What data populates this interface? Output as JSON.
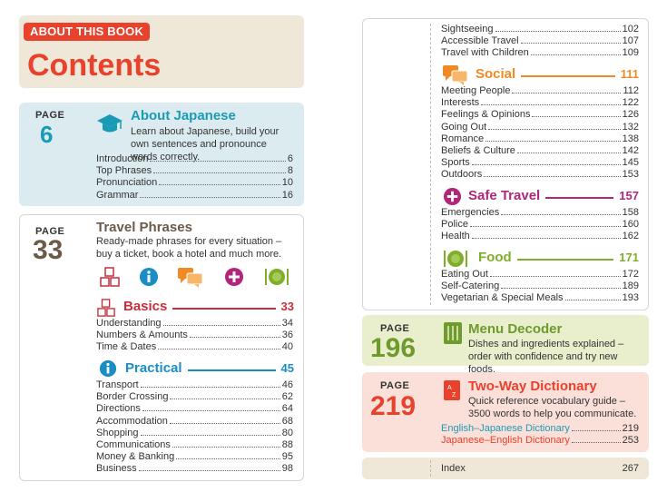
{
  "header": {
    "tag": "ABOUT THIS BOOK",
    "title": "Contents"
  },
  "page_word": "PAGE",
  "about": {
    "page": "6",
    "title": "About Japanese",
    "desc": "Learn about Japanese, build your own sentences and pronounce words correctly.",
    "items": [
      {
        "t": "Introduction",
        "p": "6"
      },
      {
        "t": "Top Phrases",
        "p": "8"
      },
      {
        "t": "Pronunciation",
        "p": "10"
      },
      {
        "t": "Grammar",
        "p": "16"
      }
    ]
  },
  "travel": {
    "page": "33",
    "title": "Travel Phrases",
    "desc": "Ready-made phrases for every situation – buy a ticket, book a hotel and much more.",
    "basics": {
      "label": "Basics",
      "page": "33",
      "items": [
        {
          "t": "Understanding",
          "p": "34"
        },
        {
          "t": "Numbers & Amounts",
          "p": "36"
        },
        {
          "t": "Time & Dates",
          "p": "40"
        }
      ]
    },
    "practical": {
      "label": "Practical",
      "page": "45",
      "items": [
        {
          "t": "Transport",
          "p": "46"
        },
        {
          "t": "Border Crossing",
          "p": "62"
        },
        {
          "t": "Directions",
          "p": "64"
        },
        {
          "t": "Accommodation",
          "p": "68"
        },
        {
          "t": "Shopping",
          "p": "80"
        },
        {
          "t": "Communications",
          "p": "88"
        },
        {
          "t": "Money & Banking",
          "p": "95"
        },
        {
          "t": "Business",
          "p": "98"
        }
      ]
    }
  },
  "right_top": [
    {
      "t": "Sightseeing",
      "p": "102"
    },
    {
      "t": "Accessible Travel",
      "p": "107"
    },
    {
      "t": "Travel with Children",
      "p": "109"
    }
  ],
  "social": {
    "label": "Social",
    "page": "111",
    "items": [
      {
        "t": "Meeting People",
        "p": "112"
      },
      {
        "t": "Interests",
        "p": "122"
      },
      {
        "t": "Feelings & Opinions",
        "p": "126"
      },
      {
        "t": "Going Out",
        "p": "132"
      },
      {
        "t": "Romance",
        "p": "138"
      },
      {
        "t": "Beliefs & Culture",
        "p": "142"
      },
      {
        "t": "Sports",
        "p": "145"
      },
      {
        "t": "Outdoors",
        "p": "153"
      }
    ]
  },
  "safe": {
    "label": "Safe Travel",
    "page": "157",
    "items": [
      {
        "t": "Emergencies",
        "p": "158"
      },
      {
        "t": "Police",
        "p": "160"
      },
      {
        "t": "Health",
        "p": "162"
      }
    ]
  },
  "food": {
    "label": "Food",
    "page": "171",
    "items": [
      {
        "t": "Eating Out",
        "p": "172"
      },
      {
        "t": "Self-Catering",
        "p": "189"
      },
      {
        "t": "Vegetarian & Special Meals",
        "p": "193"
      }
    ]
  },
  "menu": {
    "page": "196",
    "title": "Menu Decoder",
    "desc": "Dishes and ingredients explained – order with confidence and try new foods."
  },
  "dict": {
    "page": "219",
    "title": "Two-Way Dictionary",
    "desc": "Quick reference vocabulary guide – 3500 words to help you communicate.",
    "items": [
      {
        "t": "English–Japanese Dictionary",
        "p": "219"
      },
      {
        "t": "Japanese–English Dictionary",
        "p": "253"
      }
    ]
  },
  "index": {
    "t": "Index",
    "p": "267"
  },
  "colors": {
    "red": "#e8412c",
    "teal": "#1a9bb5",
    "brown": "#6b5a4a",
    "basics_red": "#c62f3b",
    "practical_blue": "#1a8ec4",
    "social_orange": "#f08a24",
    "safe_purple": "#b0267a",
    "food_green": "#7fae2b",
    "menu_green": "#6e9b2c",
    "dict_red": "#e8412c",
    "about_bg": "#dcebef",
    "menu_bg": "#e9eecd",
    "dict_bg": "#fbe0da",
    "beige_bg": "#efe7d8"
  }
}
